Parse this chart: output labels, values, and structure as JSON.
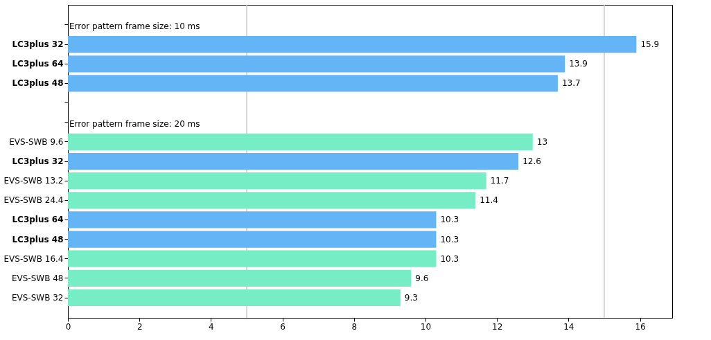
{
  "chart_data": {
    "type": "bar",
    "orientation": "horizontal",
    "categories": [
      null,
      "LC3plus 32",
      "LC3plus 64",
      "LC3plus 48",
      null,
      null,
      "EVS-SWB 9.6",
      "LC3plus 32",
      "EVS-SWB 13.2",
      "EVS-SWB 24.4",
      "LC3plus 64",
      "LC3plus 48",
      "EVS-SWB 16.4",
      "EVS-SWB 48",
      "EVS-SWB 32"
    ],
    "series": [
      {
        "color": "#64b5f6",
        "values": [
          null,
          15.9,
          13.9,
          13.7,
          null,
          null,
          null,
          12.6,
          null,
          null,
          10.3,
          10.3,
          null,
          null,
          null
        ]
      },
      {
        "color": "#77edc6",
        "values": [
          null,
          null,
          null,
          null,
          null,
          null,
          13,
          null,
          11.7,
          11.4,
          null,
          null,
          10.3,
          9.6,
          9.3
        ]
      }
    ],
    "annotations": [
      "Error pattern frame size: 10 ms",
      "Error pattern frame size: 20 ms"
    ],
    "xlim": [
      0,
      16.9
    ],
    "xticks": [
      0,
      2,
      4,
      6,
      8,
      10,
      12,
      14,
      16
    ],
    "ref_lines": [
      {
        "axis": "x",
        "value": 5,
        "color": "#cccccc"
      },
      {
        "axis": "x",
        "value": 15,
        "color": "#cccccc"
      }
    ],
    "data_labels": true,
    "grid": false
  }
}
